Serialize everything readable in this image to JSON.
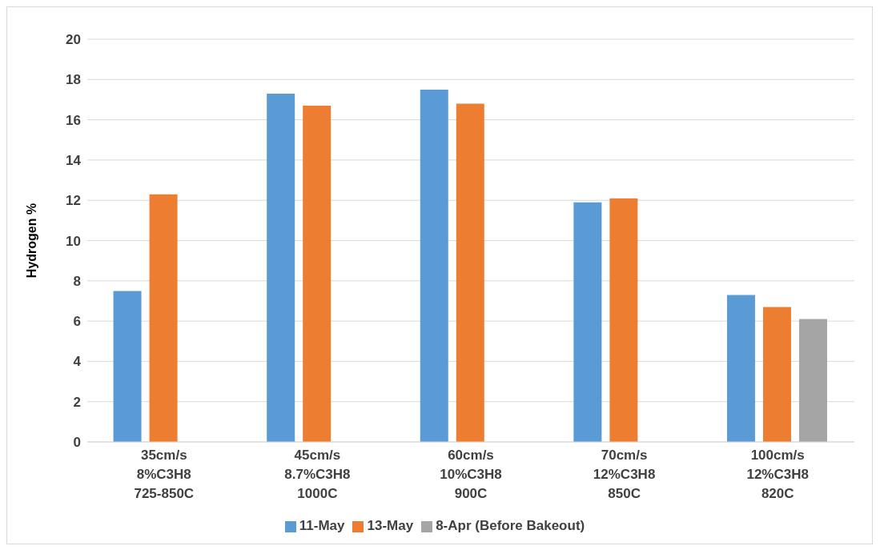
{
  "chart_data": {
    "type": "bar",
    "ylabel": "Hydrogen %",
    "categories": [
      "35cm/s\n8%C3H8\n725-850C",
      "45cm/s\n8.7%C3H8\n1000C",
      "60cm/s\n10%C3H8\n900C",
      "70cm/s\n12%C3H8\n850C",
      "100cm/s\n12%C3H8\n820C"
    ],
    "series": [
      {
        "name": "11-May",
        "color": "#5b9bd5",
        "values": [
          7.5,
          17.3,
          17.5,
          11.9,
          7.3
        ]
      },
      {
        "name": "13-May",
        "color": "#ed7d31",
        "values": [
          12.3,
          16.7,
          16.8,
          12.1,
          6.7
        ]
      },
      {
        "name": "8-Apr (Before Bakeout)",
        "color": "#a5a5a5",
        "values": [
          null,
          null,
          null,
          null,
          6.1
        ]
      }
    ],
    "ylim": [
      0,
      20
    ],
    "yticks": [
      0,
      2,
      4,
      6,
      8,
      10,
      12,
      14,
      16,
      18,
      20
    ],
    "grid": "y",
    "legend": "bottom"
  }
}
